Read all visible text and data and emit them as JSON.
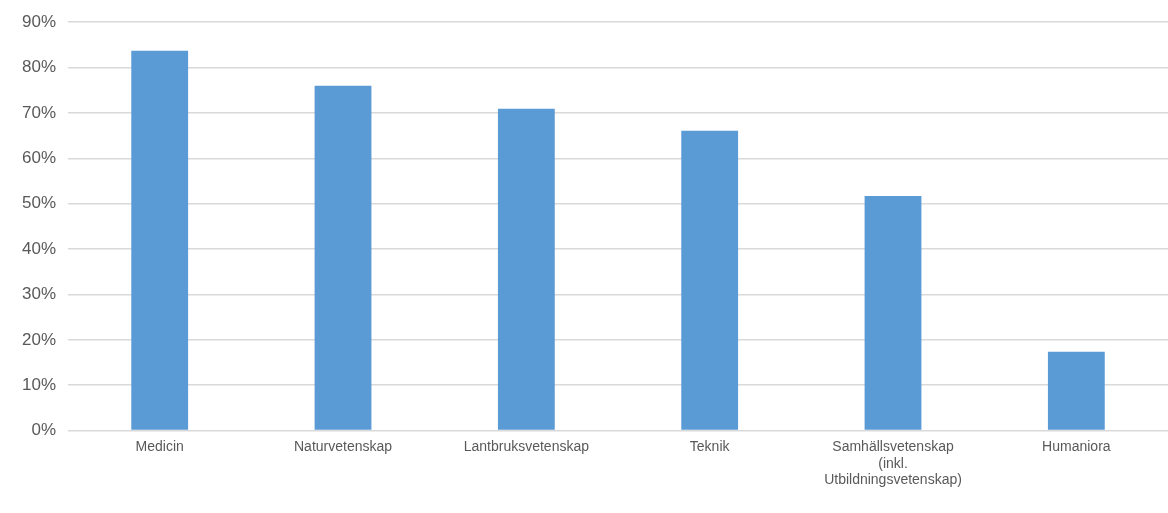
{
  "chart_data": {
    "type": "bar",
    "categories": [
      "Medicin",
      "Naturvetenskap",
      "Lantbruksvetenskap",
      "Teknik",
      "Samhällsvetenskap (inkl. Utbildningsvetenskap)",
      "Humaniora"
    ],
    "values": [
      83.7,
      76.0,
      70.9,
      66.1,
      51.7,
      17.4
    ],
    "color": "#5b9bd5",
    "ylim": [
      0,
      90
    ],
    "yticks": [
      {
        "value": 0,
        "label": "0%"
      },
      {
        "value": 10,
        "label": "10%"
      },
      {
        "value": 20,
        "label": "20%"
      },
      {
        "value": 30,
        "label": "30%"
      },
      {
        "value": 40,
        "label": "40%"
      },
      {
        "value": 50,
        "label": "50%"
      },
      {
        "value": 60,
        "label": "60%"
      },
      {
        "value": 70,
        "label": "70%"
      },
      {
        "value": 80,
        "label": "80%"
      },
      {
        "value": 90,
        "label": "90%"
      }
    ],
    "grid": "y"
  }
}
